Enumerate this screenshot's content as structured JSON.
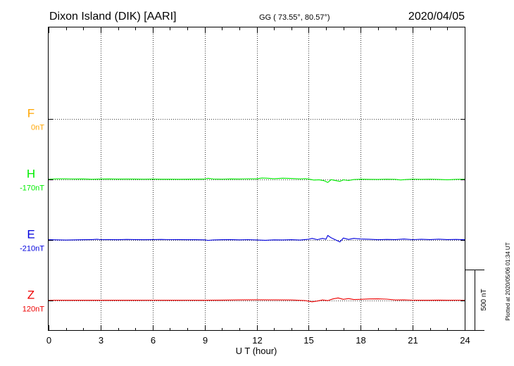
{
  "header": {
    "station": "Dixon Island (DIK)  [AARI]",
    "coords": "GG ( 73.55°,  80.57°)",
    "date": "2020/04/05"
  },
  "plotted_note": "Plotted at 2020/05/06 01:34 UT",
  "scale_bar": {
    "label": "500 nT",
    "value": 500,
    "unit": "nT"
  },
  "chart_data": {
    "type": "line",
    "xlabel": "U T (hour)",
    "xlim": [
      0,
      24
    ],
    "xticks": [
      "0",
      "3",
      "6",
      "9",
      "12",
      "15",
      "18",
      "21",
      "24"
    ],
    "grid": true,
    "ylim": [
      -1050,
      1050
    ],
    "series": [
      {
        "name": "F",
        "baseline_label": "0nT",
        "color": "#ffa500",
        "offset": 750,
        "x": [],
        "values": []
      },
      {
        "name": "H",
        "baseline_label": "-170nT",
        "color": "#00ee00",
        "offset": 250,
        "x": [
          0,
          0.5,
          1,
          1.5,
          2,
          2.5,
          3,
          3.5,
          4,
          4.5,
          5,
          5.5,
          6,
          6.5,
          7,
          7.5,
          8,
          8.5,
          9,
          9.2,
          9.5,
          10,
          10.5,
          11,
          11.5,
          12,
          12.3,
          12.6,
          13,
          13.5,
          14,
          14.5,
          14.8,
          15,
          15.3,
          15.6,
          15.9,
          16.1,
          16.3,
          16.5,
          16.8,
          17,
          17.3,
          17.6,
          18,
          18.5,
          19,
          19.5,
          20,
          20.3,
          20.6,
          21,
          21.5,
          22,
          22.5,
          23,
          23.5,
          24
        ],
        "values": [
          0,
          12,
          18,
          8,
          10,
          -8,
          6,
          10,
          4,
          8,
          2,
          0,
          4,
          -2,
          -4,
          -8,
          -4,
          2,
          5,
          40,
          8,
          0,
          10,
          6,
          18,
          12,
          55,
          45,
          22,
          45,
          30,
          10,
          25,
          5,
          -45,
          -30,
          -80,
          -160,
          -25,
          -60,
          -110,
          -35,
          -70,
          -20,
          -5,
          -10,
          -15,
          0,
          -10,
          -40,
          -20,
          0,
          -10,
          0,
          -15,
          -30,
          -10,
          0
        ]
      },
      {
        "name": "E",
        "baseline_label": "-210nT",
        "color": "#0000dd",
        "offset": -250,
        "x": [
          0,
          0.5,
          1,
          1.5,
          2,
          2.5,
          2.8,
          3,
          3.5,
          4,
          4.5,
          5,
          5.5,
          6,
          6.5,
          7,
          7.5,
          8,
          8.5,
          9,
          9.2,
          9.5,
          10,
          10.5,
          11,
          11.5,
          12,
          12.5,
          13,
          13.5,
          14,
          14.5,
          15,
          15.2,
          15.5,
          15.8,
          16,
          16.1,
          16.3,
          16.6,
          16.8,
          17,
          17.3,
          17.6,
          18,
          18.5,
          19,
          19.5,
          20,
          20.5,
          21,
          21.5,
          22,
          22.5,
          23,
          23.5,
          24
        ],
        "values": [
          0,
          -10,
          -20,
          -10,
          -5,
          5,
          20,
          0,
          5,
          -5,
          10,
          5,
          -5,
          5,
          10,
          0,
          5,
          -5,
          -5,
          -10,
          -35,
          -15,
          -5,
          5,
          -10,
          0,
          -15,
          -30,
          -10,
          -15,
          -5,
          -20,
          20,
          60,
          0,
          60,
          20,
          205,
          90,
          -30,
          -110,
          80,
          10,
          60,
          30,
          20,
          -5,
          10,
          5,
          30,
          0,
          20,
          5,
          25,
          5,
          10,
          -5
        ]
      },
      {
        "name": "Z",
        "baseline_label": "120nT",
        "color": "#ee0000",
        "offset": -750,
        "x": [
          0,
          1,
          2,
          3,
          4,
          5,
          6,
          7,
          8,
          9,
          10,
          11,
          12,
          13,
          14,
          14.8,
          15.2,
          15.5,
          15.8,
          16.1,
          16.4,
          16.7,
          17,
          17.3,
          17.6,
          18,
          18.5,
          19,
          19.5,
          20,
          20.5,
          21,
          21.5,
          22,
          22.5,
          23,
          23.5,
          24
        ],
        "values": [
          0,
          -5,
          -2,
          -5,
          -3,
          -3,
          0,
          -3,
          0,
          -2,
          5,
          12,
          20,
          15,
          10,
          -20,
          -80,
          -40,
          10,
          -20,
          60,
          110,
          40,
          80,
          30,
          40,
          60,
          65,
          50,
          10,
          15,
          0,
          -5,
          -5,
          5,
          -5,
          0,
          0
        ]
      }
    ]
  }
}
